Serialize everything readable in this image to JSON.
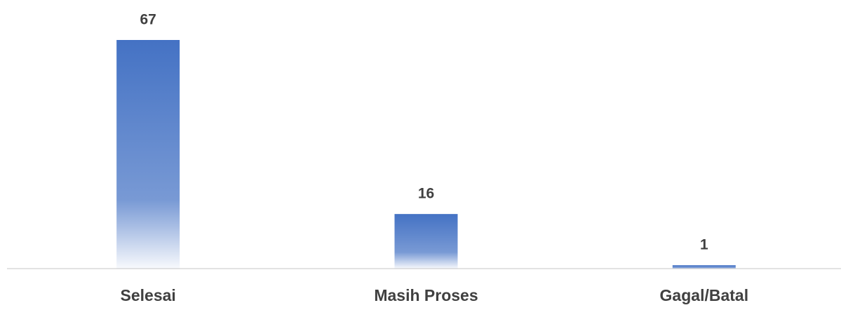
{
  "chart_data": {
    "type": "bar",
    "categories": [
      "Selesai",
      "Masih Proses",
      "Gagal/Batal"
    ],
    "values": [
      67,
      16,
      1
    ],
    "color": "#4472c4"
  }
}
